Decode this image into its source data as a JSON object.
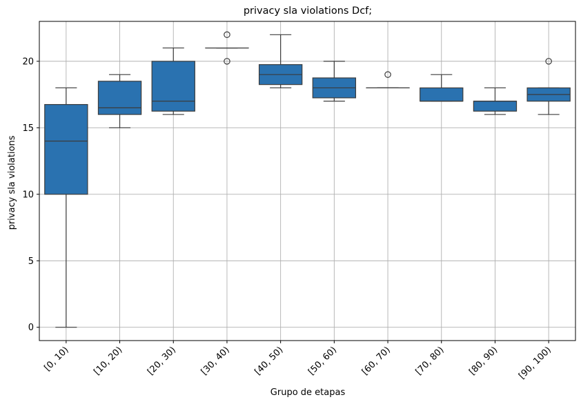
{
  "chart_data": {
    "type": "box",
    "title": "privacy sla violations Dcf;",
    "xlabel": "Grupo de etapas",
    "ylabel": "privacy sla violations",
    "ylim": [
      -1,
      23
    ],
    "yticks": [
      0,
      5,
      10,
      15,
      20
    ],
    "grid": true,
    "box_color": "#2a72b0",
    "line_color": "#3b3b3b",
    "categories": [
      "[0, 10)",
      "[10, 20)",
      "[20, 30)",
      "[30, 40)",
      "[40, 50)",
      "[50, 60)",
      "[60, 70)",
      "[70, 80)",
      "[80, 90)",
      "[90, 100)"
    ],
    "boxes": [
      {
        "whislo": 0,
        "q1": 10,
        "med": 14,
        "q3": 16.75,
        "whishi": 18,
        "fliers": []
      },
      {
        "whislo": 15,
        "q1": 16,
        "med": 16.5,
        "q3": 18.5,
        "whishi": 19,
        "fliers": []
      },
      {
        "whislo": 16,
        "q1": 16.25,
        "med": 17,
        "q3": 20,
        "whishi": 21,
        "fliers": []
      },
      {
        "whislo": 21,
        "q1": 21,
        "med": 21,
        "q3": 21,
        "whishi": 21,
        "fliers": [
          22,
          20
        ]
      },
      {
        "whislo": 18,
        "q1": 18.25,
        "med": 19,
        "q3": 19.75,
        "whishi": 22,
        "fliers": []
      },
      {
        "whislo": 17,
        "q1": 17.25,
        "med": 18,
        "q3": 18.75,
        "whishi": 20,
        "fliers": []
      },
      {
        "whislo": 18,
        "q1": 18,
        "med": 18,
        "q3": 18,
        "whishi": 18,
        "fliers": [
          19
        ]
      },
      {
        "whislo": 17,
        "q1": 17,
        "med": 17,
        "q3": 18,
        "whishi": 19,
        "fliers": []
      },
      {
        "whislo": 16,
        "q1": 16.25,
        "med": 17,
        "q3": 17,
        "whishi": 18,
        "fliers": []
      },
      {
        "whislo": 16,
        "q1": 17,
        "med": 17.5,
        "q3": 18,
        "whishi": 18,
        "fliers": [
          20
        ]
      }
    ]
  }
}
